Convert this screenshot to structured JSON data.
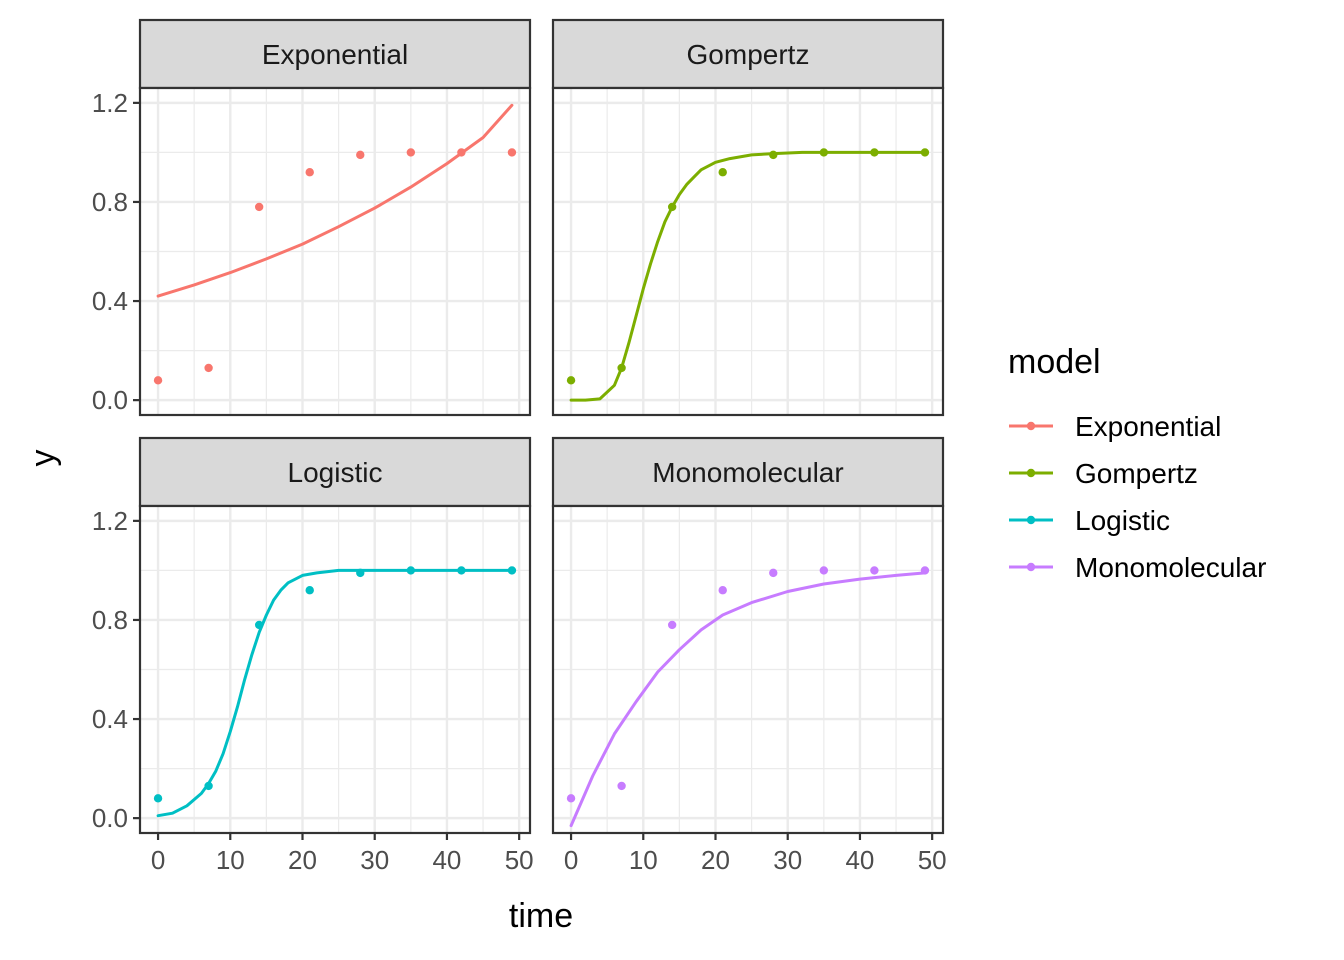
{
  "chart_data": {
    "type": "line",
    "xlabel": "time",
    "ylabel": "y",
    "xlim": [
      -2.5,
      51.5
    ],
    "ylim": [
      -0.06,
      1.26
    ],
    "x_ticks": [
      0,
      10,
      20,
      30,
      40,
      50
    ],
    "x_tick_labels": [
      "0",
      "10",
      "20",
      "30",
      "40",
      "50"
    ],
    "y_ticks": [
      0.0,
      0.4,
      0.8,
      1.2
    ],
    "y_tick_labels": [
      "0.0",
      "0.4",
      "0.8",
      "1.2"
    ],
    "grid": true,
    "legend": {
      "title": "model",
      "placement": "right",
      "entries": [
        "Exponential",
        "Gompertz",
        "Logistic",
        "Monomolecular"
      ]
    },
    "observed": {
      "x": [
        0,
        7,
        14,
        21,
        28,
        35,
        42,
        49
      ],
      "y": [
        0.08,
        0.13,
        0.78,
        0.92,
        0.99,
        1.0,
        1.0,
        1.0
      ]
    },
    "series": [
      {
        "name": "Exponential",
        "color": "#F8766D",
        "fit_x": [
          0,
          5,
          10,
          15,
          20,
          25,
          30,
          35,
          40,
          45,
          49
        ],
        "fit_y": [
          0.42,
          0.465,
          0.515,
          0.57,
          0.63,
          0.7,
          0.775,
          0.86,
          0.955,
          1.06,
          1.19
        ]
      },
      {
        "name": "Gompertz",
        "color": "#7CAE00",
        "fit_x": [
          0,
          2,
          4,
          6,
          7,
          8,
          9,
          10,
          11,
          12,
          13,
          14,
          15,
          16,
          17,
          18,
          20,
          22,
          25,
          28,
          32,
          38,
          44,
          49
        ],
        "fit_y": [
          0.0,
          0.0,
          0.005,
          0.06,
          0.13,
          0.23,
          0.34,
          0.45,
          0.55,
          0.64,
          0.72,
          0.78,
          0.83,
          0.87,
          0.9,
          0.93,
          0.96,
          0.975,
          0.99,
          0.995,
          1.0,
          1.0,
          1.0,
          1.0
        ]
      },
      {
        "name": "Logistic",
        "color": "#00BFC4",
        "fit_x": [
          0,
          2,
          4,
          6,
          7,
          8,
          9,
          10,
          11,
          12,
          13,
          14,
          15,
          16,
          17,
          18,
          20,
          22,
          25,
          28,
          35,
          42,
          49
        ],
        "fit_y": [
          0.01,
          0.02,
          0.05,
          0.1,
          0.14,
          0.19,
          0.26,
          0.35,
          0.45,
          0.56,
          0.66,
          0.75,
          0.82,
          0.88,
          0.92,
          0.95,
          0.98,
          0.99,
          1.0,
          1.0,
          1.0,
          1.0,
          1.0
        ]
      },
      {
        "name": "Monomolecular",
        "color": "#C77CFF",
        "fit_x": [
          0,
          3,
          6,
          9,
          12,
          15,
          18,
          21,
          25,
          30,
          35,
          40,
          45,
          49
        ],
        "fit_y": [
          -0.03,
          0.17,
          0.34,
          0.47,
          0.59,
          0.68,
          0.76,
          0.82,
          0.87,
          0.915,
          0.945,
          0.965,
          0.98,
          0.99
        ]
      }
    ]
  }
}
